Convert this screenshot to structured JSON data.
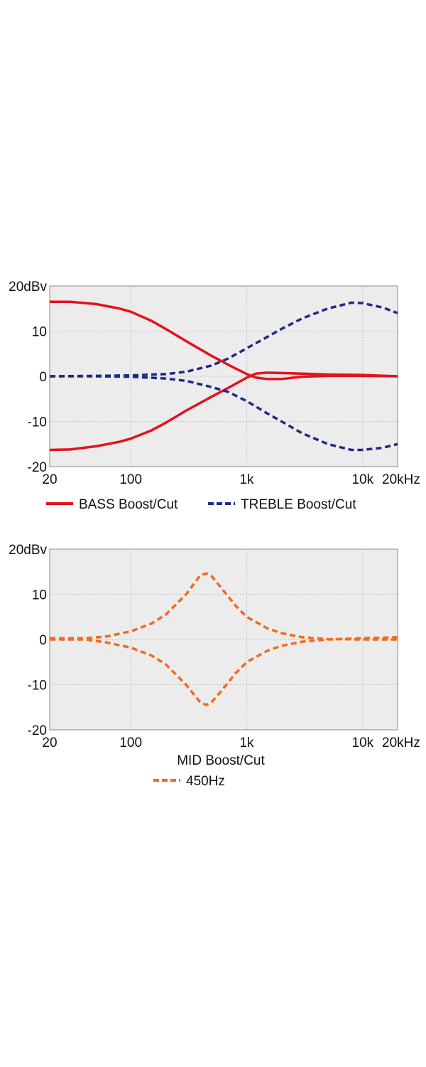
{
  "chart_data": [
    {
      "type": "line",
      "x_scale": "log",
      "xlim": [
        20,
        20000
      ],
      "ylim": [
        -20,
        20
      ],
      "grid": true,
      "background": "#ececec",
      "x_ticks": [
        {
          "value": 20,
          "label": "20"
        },
        {
          "value": 100,
          "label": "100"
        },
        {
          "value": 1000,
          "label": "1k"
        },
        {
          "value": 10000,
          "label": "10k"
        },
        {
          "value": 20000,
          "label": "20kHz"
        }
      ],
      "y_ticks": [
        {
          "value": 20,
          "label": "20dBv"
        },
        {
          "value": 10,
          "label": "10"
        },
        {
          "value": 0,
          "label": "0"
        },
        {
          "value": -10,
          "label": "-10"
        },
        {
          "value": -20,
          "label": "-20"
        }
      ],
      "legend_position": "bottom",
      "series": [
        {
          "name": "BASS Boost/Cut",
          "color": "#e3121b",
          "dash": "solid",
          "points": [
            [
              20,
              16.5
            ],
            [
              30,
              16.5
            ],
            [
              50,
              16
            ],
            [
              80,
              15
            ],
            [
              100,
              14.3
            ],
            [
              150,
              12.3
            ],
            [
              200,
              10.5
            ],
            [
              300,
              7.8
            ],
            [
              500,
              4.5
            ],
            [
              700,
              2.5
            ],
            [
              1000,
              0.5
            ],
            [
              1200,
              -0.3
            ],
            [
              1500,
              -0.6
            ],
            [
              2000,
              -0.6
            ],
            [
              3000,
              -0.1
            ],
            [
              5000,
              0.1
            ],
            [
              10000,
              0.1
            ],
            [
              20000,
              0
            ]
          ]
        },
        {
          "name": "BASS Boost/Cut",
          "color": "#e3121b",
          "dash": "solid",
          "points": [
            [
              20,
              -16.3
            ],
            [
              30,
              -16.2
            ],
            [
              50,
              -15.5
            ],
            [
              80,
              -14.5
            ],
            [
              100,
              -13.8
            ],
            [
              150,
              -12
            ],
            [
              200,
              -10.3
            ],
            [
              300,
              -7.6
            ],
            [
              500,
              -4.5
            ],
            [
              700,
              -2.5
            ],
            [
              1000,
              -0.3
            ],
            [
              1200,
              0.6
            ],
            [
              1500,
              0.8
            ],
            [
              3000,
              0.6
            ],
            [
              5000,
              0.4
            ],
            [
              10000,
              0.3
            ],
            [
              20000,
              0
            ]
          ]
        },
        {
          "name": "TREBLE Boost/Cut",
          "color": "#1f2a87",
          "dash": "dashed",
          "points": [
            [
              20,
              0
            ],
            [
              50,
              0.1
            ],
            [
              100,
              0.2
            ],
            [
              200,
              0.5
            ],
            [
              300,
              1
            ],
            [
              500,
              2.4
            ],
            [
              700,
              4
            ],
            [
              1000,
              6.2
            ],
            [
              1500,
              8.7
            ],
            [
              2000,
              10.5
            ],
            [
              3000,
              12.8
            ],
            [
              5000,
              15
            ],
            [
              8000,
              16.3
            ],
            [
              10000,
              16.2
            ],
            [
              15000,
              15.2
            ],
            [
              20000,
              14
            ]
          ]
        },
        {
          "name": "TREBLE Boost/Cut",
          "color": "#1f2a87",
          "dash": "dashed",
          "points": [
            [
              20,
              0
            ],
            [
              50,
              0
            ],
            [
              100,
              -0.1
            ],
            [
              200,
              -0.5
            ],
            [
              300,
              -1
            ],
            [
              500,
              -2.4
            ],
            [
              700,
              -3.5
            ],
            [
              1000,
              -5.5
            ],
            [
              1500,
              -8.2
            ],
            [
              2000,
              -10
            ],
            [
              3000,
              -12.6
            ],
            [
              5000,
              -15
            ],
            [
              8000,
              -16.3
            ],
            [
              10000,
              -16.3
            ],
            [
              15000,
              -15.8
            ],
            [
              20000,
              -15
            ]
          ]
        }
      ],
      "legend": [
        {
          "label": "BASS Boost/Cut",
          "color": "#e3121b",
          "dash": "solid"
        },
        {
          "label": "TREBLE Boost/Cut",
          "color": "#1f2a87",
          "dash": "dashed"
        }
      ]
    },
    {
      "type": "line",
      "x_scale": "log",
      "xlim": [
        20,
        20000
      ],
      "ylim": [
        -20,
        20
      ],
      "grid": true,
      "background": "#ececec",
      "title": "MID Boost/Cut",
      "x_ticks": [
        {
          "value": 20,
          "label": "20"
        },
        {
          "value": 100,
          "label": "100"
        },
        {
          "value": 1000,
          "label": "1k"
        },
        {
          "value": 10000,
          "label": "10k"
        },
        {
          "value": 20000,
          "label": "20kHz"
        }
      ],
      "y_ticks": [
        {
          "value": 20,
          "label": "20dBv"
        },
        {
          "value": 10,
          "label": "10"
        },
        {
          "value": 0,
          "label": "0"
        },
        {
          "value": -10,
          "label": "-10"
        },
        {
          "value": -20,
          "label": "-20"
        }
      ],
      "legend_position": "bottom",
      "series": [
        {
          "name": "450Hz",
          "color": "#f26b1d",
          "dash": "dashed",
          "points": [
            [
              20,
              0.3
            ],
            [
              40,
              0.3
            ],
            [
              60,
              0.6
            ],
            [
              100,
              1.8
            ],
            [
              150,
              3.5
            ],
            [
              200,
              5.5
            ],
            [
              300,
              10
            ],
            [
              400,
              14.3
            ],
            [
              450,
              14.6
            ],
            [
              500,
              14
            ],
            [
              600,
              11.5
            ],
            [
              800,
              7.5
            ],
            [
              1000,
              5
            ],
            [
              1500,
              2.5
            ],
            [
              2000,
              1.4
            ],
            [
              3000,
              0.5
            ],
            [
              5000,
              0.1
            ],
            [
              10000,
              0
            ],
            [
              20000,
              0
            ]
          ]
        },
        {
          "name": "450Hz",
          "color": "#f26b1d",
          "dash": "dashed",
          "points": [
            [
              20,
              0
            ],
            [
              40,
              0
            ],
            [
              60,
              -0.6
            ],
            [
              100,
              -1.8
            ],
            [
              150,
              -3.5
            ],
            [
              200,
              -5.5
            ],
            [
              300,
              -10
            ],
            [
              400,
              -14
            ],
            [
              450,
              -14.5
            ],
            [
              500,
              -13.8
            ],
            [
              600,
              -11.5
            ],
            [
              800,
              -7.5
            ],
            [
              1000,
              -5
            ],
            [
              1500,
              -2.5
            ],
            [
              2000,
              -1.4
            ],
            [
              3000,
              -0.5
            ],
            [
              5000,
              0
            ],
            [
              10000,
              0.3
            ],
            [
              20000,
              0.5
            ]
          ]
        }
      ],
      "legend": [
        {
          "label": "450Hz",
          "color": "#f26b1d",
          "dash": "dashed"
        }
      ]
    }
  ]
}
